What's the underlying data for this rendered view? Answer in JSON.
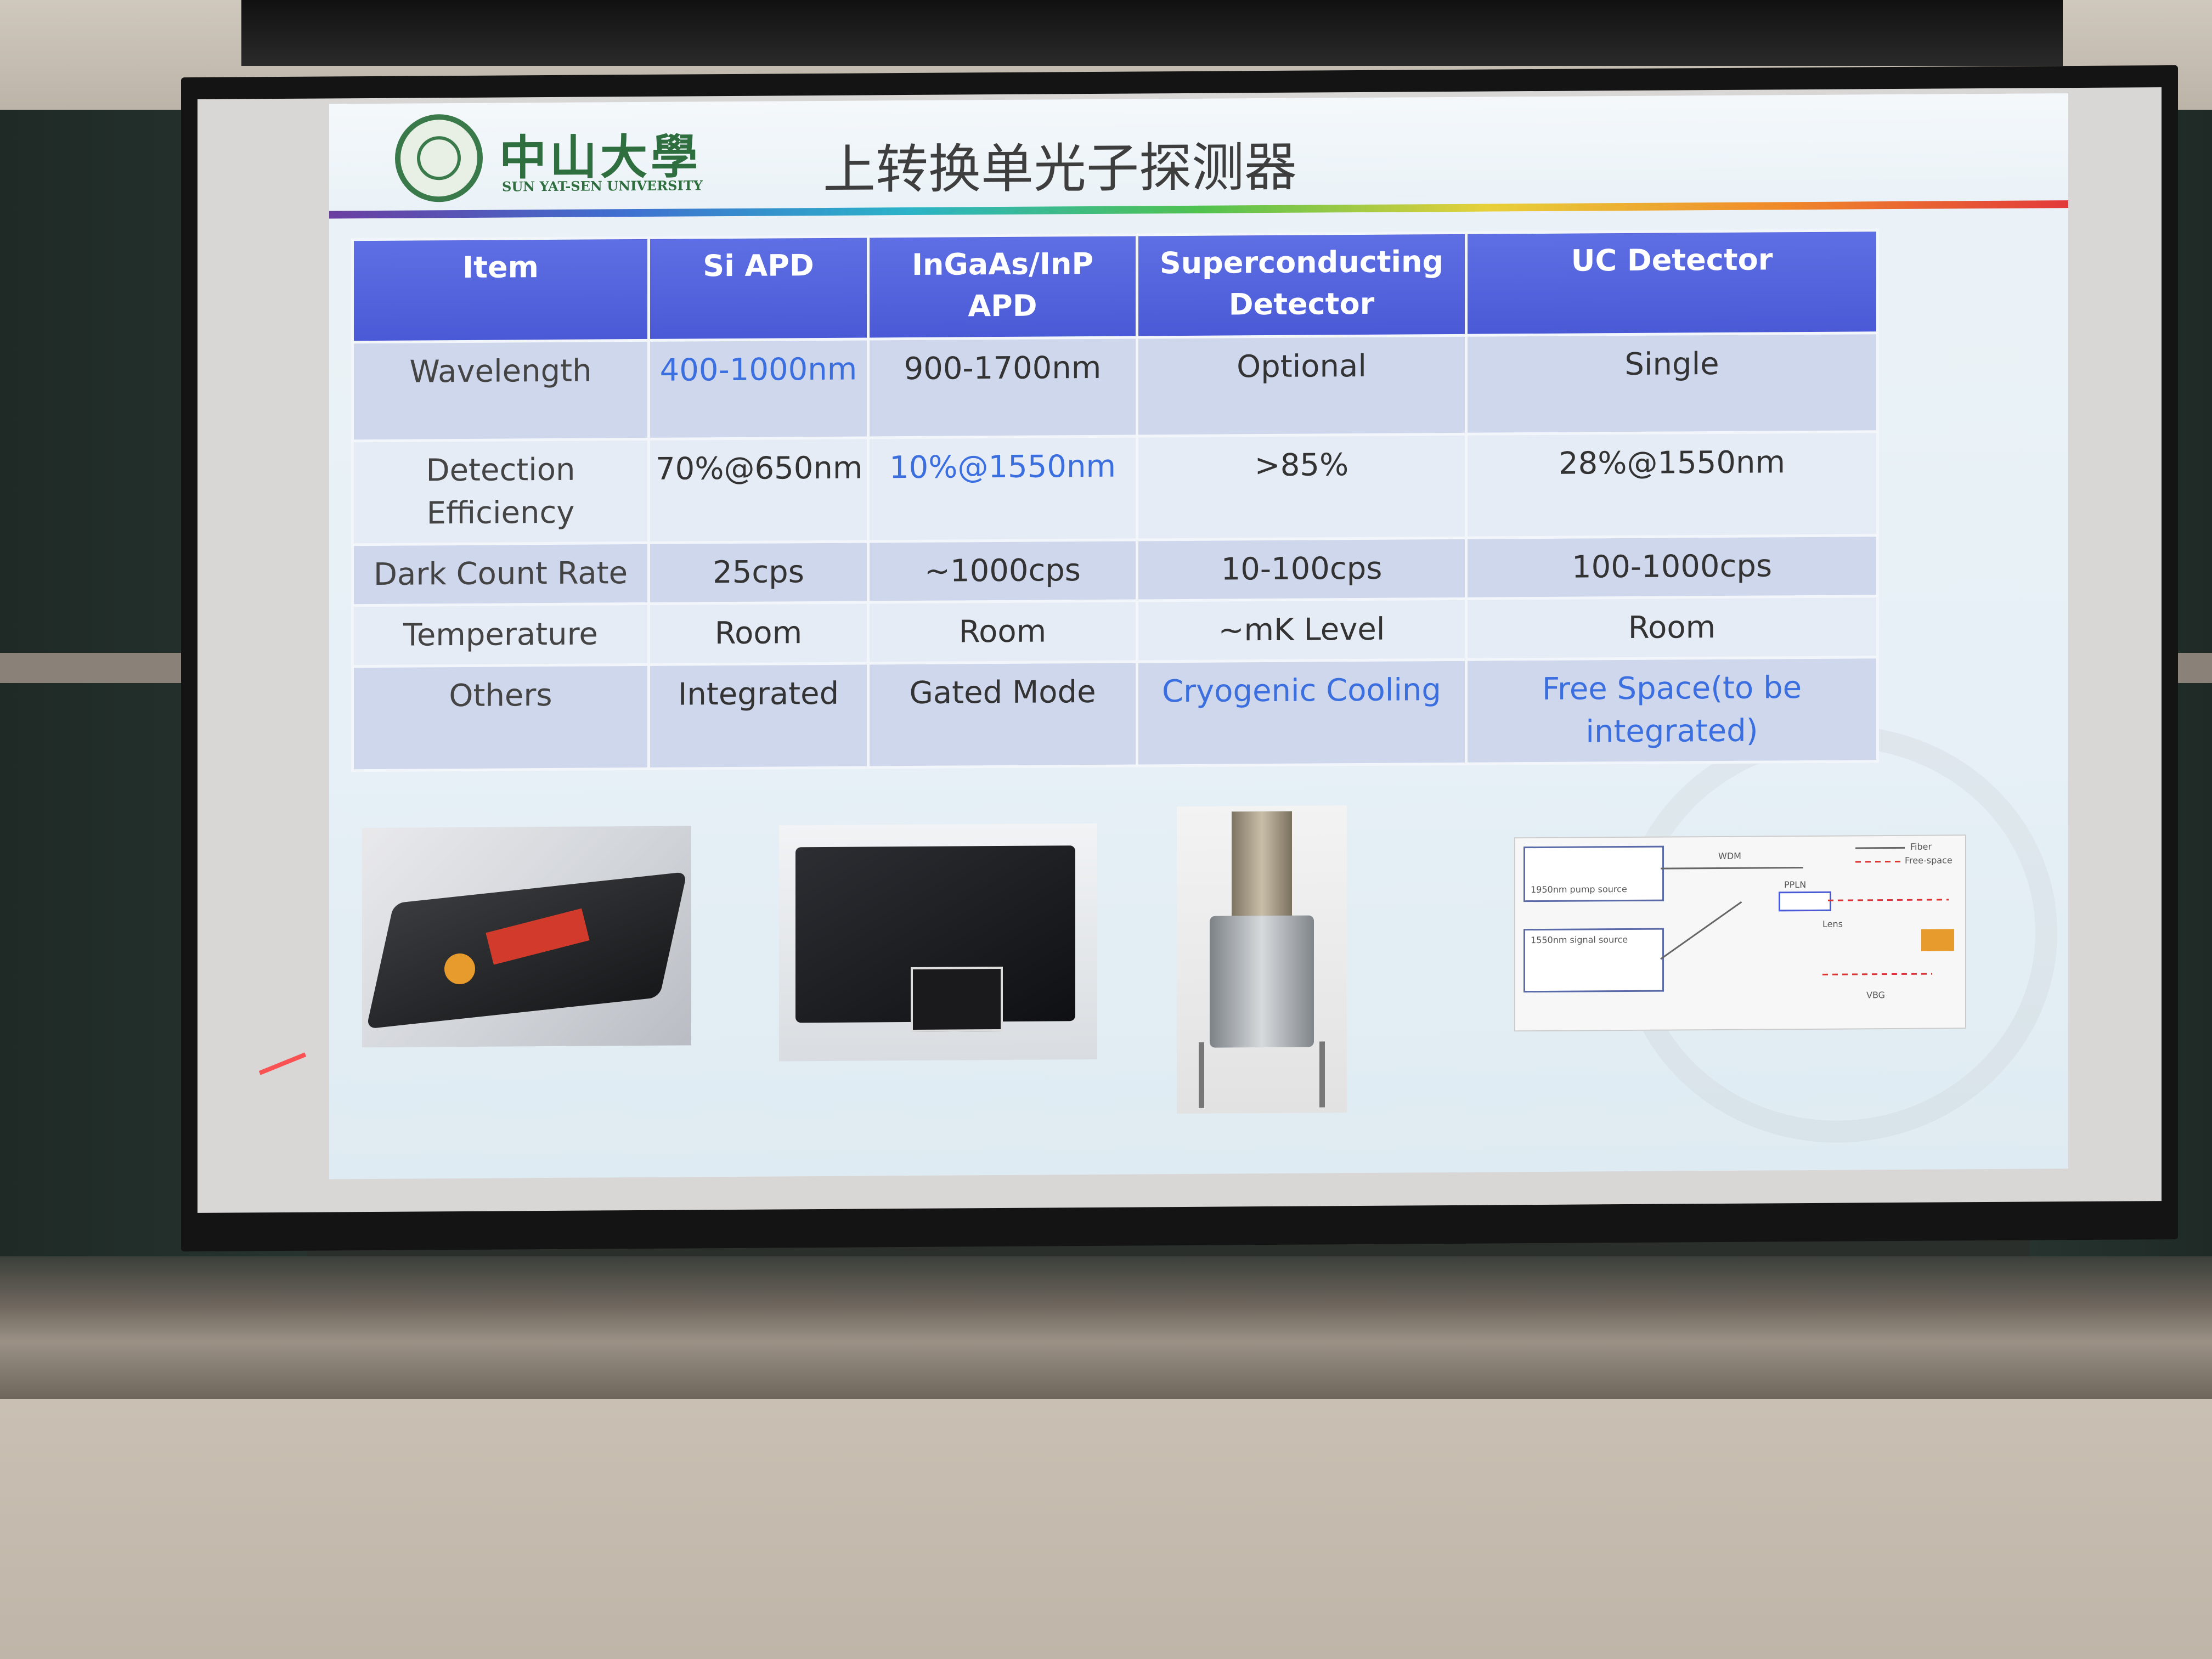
{
  "slide": {
    "logo_cn": "中山大學",
    "logo_en": "SUN YAT-SEN UNIVERSITY",
    "title": "上转换单光子探测器"
  },
  "table": {
    "headers": [
      "Item",
      "Si APD",
      "InGaAs/InP APD",
      "Superconducting Detector",
      "UC Detector"
    ],
    "rows": [
      {
        "label": "Wavelength",
        "cells": [
          "400-1000nm",
          "900-1700nm",
          "Optional",
          "Single"
        ]
      },
      {
        "label": "Detection Efficiency",
        "cells": [
          "70%@650nm",
          "10%@1550nm",
          ">85%",
          "28%@1550nm"
        ]
      },
      {
        "label": "Dark Count Rate",
        "cells": [
          "25cps",
          "~1000cps",
          "10-100cps",
          "100-1000cps"
        ]
      },
      {
        "label": "Temperature",
        "cells": [
          "Room",
          "Room",
          "~mK Level",
          "Room"
        ]
      },
      {
        "label": "Others",
        "cells": [
          "Integrated",
          "Gated Mode",
          "Cryogenic Cooling",
          "Free Space(to be integrated)"
        ]
      }
    ]
  },
  "photos": {
    "si_apd": "si-apd-module-photo",
    "ingaas": "ingaas-apd-box-photo",
    "superconducting": "cryostat-photo",
    "uc_diagram": "uc-detector-setup-diagram"
  },
  "diagram_labels": {
    "pump": "1950nm pump source",
    "signal": "1550nm signal source",
    "wdm": "WDM",
    "ppln": "PPLN",
    "fiber": "Fiber",
    "free_space": "Free-space",
    "lens": "Lens",
    "vbg": "VBG"
  },
  "colors": {
    "header_blue": "#4f60db",
    "highlight_blue": "#3b6fe0",
    "logo_green": "#2f6e3e"
  }
}
